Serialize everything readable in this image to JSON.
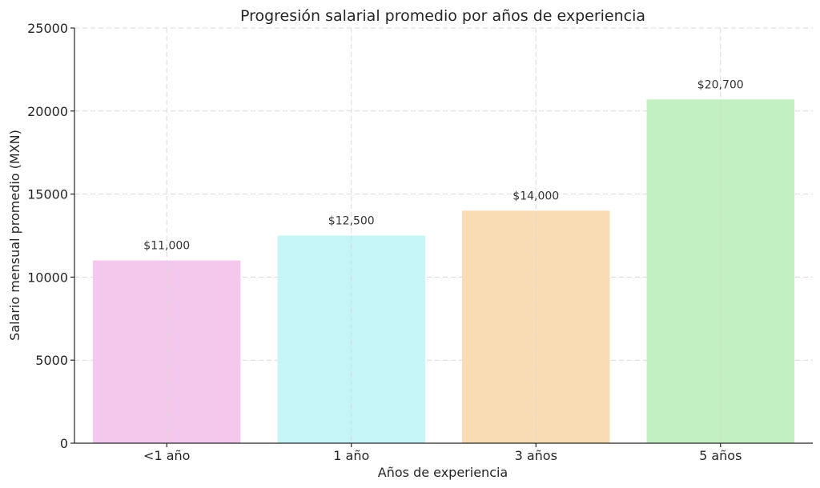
{
  "chart_data": {
    "type": "bar",
    "title": "Progresión salarial promedio por años de experiencia",
    "xlabel": "Años de experiencia",
    "ylabel": "Salario mensual promedio (MXN)",
    "categories": [
      "<1 año",
      "1 año",
      "3 años",
      "5 años"
    ],
    "values": [
      11000,
      12500,
      14000,
      20700
    ],
    "data_labels": [
      "$11,000",
      "$12,500",
      "$14,000",
      "$20,700"
    ],
    "colors": [
      "#f3c8ec",
      "#c6f5f7",
      "#fadcb4",
      "#c2f0c2"
    ],
    "ylim": [
      0,
      25000
    ],
    "yticks": [
      0,
      5000,
      10000,
      15000,
      20000,
      25000
    ],
    "ytick_labels": [
      "0",
      "5000",
      "10000",
      "15000",
      "20000",
      "25000"
    ],
    "grid": true,
    "legend": "none"
  }
}
